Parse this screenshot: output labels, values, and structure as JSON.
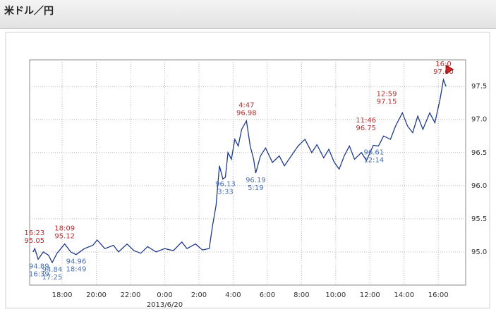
{
  "header": {
    "title": "米ドル／円"
  },
  "chart_data": {
    "type": "line",
    "x_date_label": "2013/6/20",
    "series": [
      {
        "name": "USD/JPY",
        "color": "#1f3a8a",
        "x": [
          16.3,
          16.4,
          16.6,
          16.9,
          17.2,
          17.42,
          17.7,
          18.15,
          18.5,
          18.82,
          19.3,
          19.8,
          20.05,
          20.5,
          21.0,
          21.3,
          21.8,
          22.2,
          22.6,
          23.0,
          23.5,
          24.0,
          24.5,
          25.0,
          25.3,
          25.8,
          26.2,
          26.6,
          26.8,
          27.0,
          27.2,
          27.4,
          27.55,
          27.7,
          27.9,
          28.1,
          28.3,
          28.5,
          28.78,
          29.0,
          29.2,
          29.32,
          29.6,
          29.9,
          30.3,
          30.7,
          31.0,
          31.4,
          31.8,
          32.2,
          32.6,
          32.9,
          33.3,
          33.6,
          33.9,
          34.2,
          34.5,
          34.8,
          35.1,
          35.5,
          35.8,
          36.2,
          36.5,
          36.8,
          37.2,
          37.5,
          37.9,
          38.2,
          38.5,
          38.8,
          39.1,
          39.5,
          39.8,
          40.1,
          40.3,
          40.45
        ],
        "values": [
          95.0,
          95.05,
          94.89,
          95.0,
          94.95,
          94.84,
          94.98,
          95.12,
          95.0,
          94.96,
          95.05,
          95.1,
          95.18,
          95.05,
          95.1,
          95.0,
          95.12,
          95.02,
          94.98,
          95.08,
          95.0,
          95.05,
          95.02,
          95.15,
          95.05,
          95.12,
          95.03,
          95.05,
          95.4,
          95.7,
          96.3,
          96.1,
          96.13,
          96.5,
          96.4,
          96.7,
          96.6,
          96.85,
          96.98,
          96.6,
          96.4,
          96.19,
          96.45,
          96.57,
          96.35,
          96.45,
          96.3,
          96.45,
          96.6,
          96.7,
          96.5,
          96.62,
          96.42,
          96.55,
          96.36,
          96.25,
          96.45,
          96.6,
          96.4,
          96.5,
          96.38,
          96.61,
          96.6,
          96.75,
          96.7,
          96.9,
          97.1,
          96.9,
          96.8,
          97.05,
          96.85,
          97.1,
          96.95,
          97.3,
          97.6,
          97.5
        ]
      }
    ],
    "xlim": [
      16.1,
      41.6
    ],
    "ylim": [
      94.5,
      97.9
    ],
    "xticks": [
      {
        "value": 18,
        "label": "18:00"
      },
      {
        "value": 20,
        "label": "20:00"
      },
      {
        "value": 22,
        "label": "22:00"
      },
      {
        "value": 24,
        "label": "0:00"
      },
      {
        "value": 26,
        "label": "2:00"
      },
      {
        "value": 28,
        "label": "4:00"
      },
      {
        "value": 30,
        "label": "6:00"
      },
      {
        "value": 32,
        "label": "8:00"
      },
      {
        "value": 34,
        "label": "10:00"
      },
      {
        "value": 36,
        "label": "12:00"
      },
      {
        "value": 38,
        "label": "14:00"
      },
      {
        "value": 40,
        "label": "16:00"
      }
    ],
    "yticks": [
      {
        "value": 95,
        "label": "95.0"
      },
      95.5,
      {
        "value": 96,
        "label": "96.0"
      },
      96.5,
      {
        "value": 97,
        "label": "97.0"
      },
      97.5
    ],
    "grid": true,
    "annotations": [
      {
        "kind": "high",
        "labels": [
          "16:23",
          "95.05"
        ],
        "x": 16.38,
        "y": 95.05
      },
      {
        "kind": "high",
        "labels": [
          "18:09",
          "95.12"
        ],
        "x": 18.15,
        "y": 95.12
      },
      {
        "kind": "high",
        "labels": [
          "4:47",
          "96.98"
        ],
        "x": 28.78,
        "y": 96.98
      },
      {
        "kind": "high",
        "labels": [
          "11:46",
          "96.75"
        ],
        "x": 35.77,
        "y": 96.75
      },
      {
        "kind": "high",
        "labels": [
          "12:59",
          "97.15"
        ],
        "x": 36.98,
        "y": 97.15
      },
      {
        "kind": "high",
        "labels": [
          "16:0",
          "97.60"
        ],
        "x": 40.3,
        "y": 97.6
      },
      {
        "kind": "low",
        "labels": [
          "94.89",
          "16:39"
        ],
        "x": 16.65,
        "y": 94.89
      },
      {
        "kind": "low",
        "labels": [
          "94.84",
          "17:25"
        ],
        "x": 17.42,
        "y": 94.84
      },
      {
        "kind": "low",
        "labels": [
          "94.96",
          "18:49"
        ],
        "x": 18.82,
        "y": 94.96
      },
      {
        "kind": "low",
        "labels": [
          "96.13",
          "3:33"
        ],
        "x": 27.55,
        "y": 96.13
      },
      {
        "kind": "low",
        "labels": [
          "96.19",
          "5:19"
        ],
        "x": 29.32,
        "y": 96.19
      },
      {
        "kind": "low",
        "labels": [
          "96.61",
          "12:14"
        ],
        "x": 36.23,
        "y": 96.61
      }
    ]
  }
}
